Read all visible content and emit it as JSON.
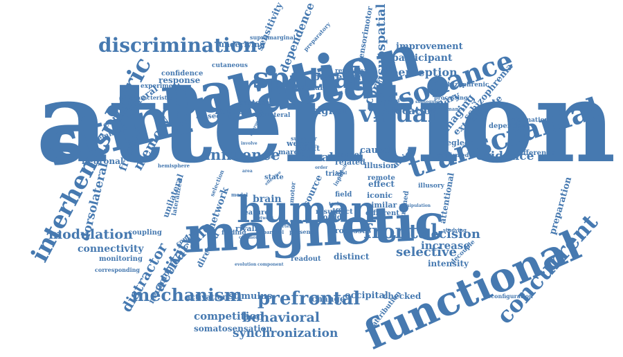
{
  "colors": {
    "word": "#4679b0",
    "background": "#ffffff"
  },
  "words": [
    "attention",
    "stimulation",
    "parietal",
    "magnetic",
    "human",
    "functional",
    "transcranial",
    "interhemispheric",
    "spatial",
    "resonance",
    "discrimination",
    "concurrent",
    "visual",
    "frontal",
    "prefrontal",
    "mechanism",
    "modulation",
    "influence",
    "tactile",
    "activity",
    "distractor",
    "memory",
    "behavioral",
    "synchronization",
    "selective",
    "decision",
    "visuospatial",
    "cortical",
    "dependence",
    "evidence",
    "imaging",
    "schizophrenia",
    "extrastriate",
    "neural",
    "region",
    "signal",
    "location",
    "posterior",
    "perception",
    "participant",
    "improvement",
    "connectivity",
    "increase",
    "intensity",
    "occipital",
    "competition",
    "somatosensation",
    "stimulus",
    "activation",
    "change",
    "checked",
    "network",
    "brain",
    "source",
    "neurology",
    "dorsolateral",
    "contralateral",
    "primary",
    "sensitivity",
    "sensorimotor",
    "fraction",
    "neuronal",
    "preparation",
    "attentional",
    "distinct",
    "readout",
    "underlying",
    "cutaneous",
    "confidence",
    "response",
    "experiment",
    "characteristic",
    "hemifield",
    "unilateral",
    "lateralized",
    "coupling",
    "monitoring",
    "corresponding",
    "directed",
    "control",
    "finding",
    "rivalry",
    "processes",
    "effect",
    "iconic",
    "similar",
    "different",
    "affect",
    "result",
    "toadd",
    "field",
    "feature",
    "motor",
    "remote",
    "pubmed",
    "causal",
    "illusion",
    "article",
    "related",
    "target",
    "shift",
    "weber",
    "march",
    "trial",
    "bilateral",
    "pattern",
    "biased",
    "ipsilateral",
    "superior",
    "neglect",
    "dependent",
    "difference",
    "information",
    "performance",
    "processing",
    "schizophrenic",
    "induced",
    "supramarginal",
    "preparatory",
    "repetitive",
    "illusory",
    "confirmed",
    "hemisphere",
    "selection",
    "state",
    "model",
    "decouple",
    "reconfiguration",
    "studying",
    "parallel",
    "presence",
    "evolution",
    "component",
    "attribution",
    "common",
    "involve",
    "neuroscience",
    "phase",
    "stimuli",
    "task",
    "input",
    "order",
    "area",
    "effective",
    "local",
    "network",
    "cortex",
    "subsequent",
    "manipulation"
  ]
}
